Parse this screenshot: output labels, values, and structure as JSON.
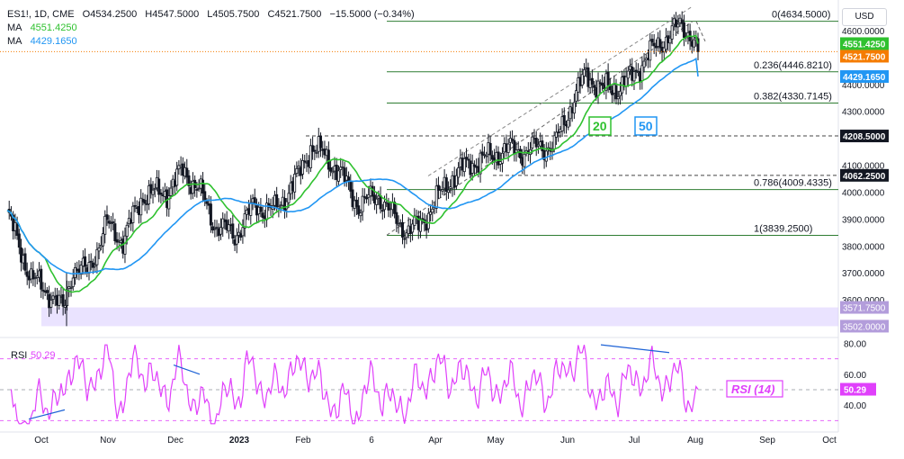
{
  "header": {
    "symbol": "ES1!, 1D, CME",
    "open": "O4534.2500",
    "high": "H4547.5000",
    "low": "L4505.7500",
    "close": "C4521.7500",
    "change": "−15.5000 (−0.34%)",
    "ma_label": "MA",
    "ma1_value": "4551.4250",
    "ma2_value": "4429.1650"
  },
  "currency_button": "USD",
  "colors": {
    "up": "#089981",
    "down": "#f23645",
    "candle": "#131722",
    "ma20": "#2fc12f",
    "ma50": "#2196f3",
    "rsi": "#e040fb",
    "price_tag": "#f57c00",
    "zone": "#d9ccff",
    "level": "#2e7d32"
  },
  "chart_data": [
    {
      "type": "candlestick",
      "series": [
        {
          "name": "ES1!",
          "values": "daily OHLC"
        },
        {
          "name": "MA",
          "period": 20,
          "last": 4551.425
        },
        {
          "name": "MA",
          "period": 50,
          "last": 4429.165
        }
      ],
      "ylim": [
        3470,
        4680
      ],
      "y_ticks": [
        3600,
        3700,
        3800,
        3900,
        4000,
        4100,
        4200,
        4300,
        4400,
        4500,
        4600
      ],
      "y_tick_labels": [
        "3600.0000",
        "3700.0000",
        "3800.0000",
        "3900.0000",
        "4000.0000",
        "4100.0000",
        "4200.0000",
        "4300.0000",
        "4400.0000",
        "4500.0000",
        "4600.0000"
      ],
      "x_tick_labels": [
        "Oct",
        "Nov",
        "Dec",
        "2023",
        "Feb",
        "6",
        "Apr",
        "May",
        "Jun",
        "Jul",
        "Aug",
        "Sep",
        "Oct"
      ],
      "fib_levels": [
        {
          "ratio": "0",
          "value": 4634.5,
          "label": "0(4634.5000)"
        },
        {
          "ratio": "0.236",
          "value": 4446.821,
          "label": "0.236(4446.8210)"
        },
        {
          "ratio": "0.382",
          "value": 4330.7145,
          "label": "0.382(4330.7145)"
        },
        {
          "ratio": "0.786",
          "value": 4009.4335,
          "label": "0.786(4009.4335)"
        },
        {
          "ratio": "1",
          "value": 3839.25,
          "label": "1(3839.2500)"
        }
      ],
      "horizontal_levels": [
        {
          "value": 4208.5,
          "label": "4208.5000"
        },
        {
          "value": 4062.25,
          "label": "4062.2500"
        }
      ],
      "support_zone": {
        "low": 3502.0,
        "high": 3571.75,
        "labels": [
          "3571.7500",
          "3502.0000"
        ]
      },
      "price_tags": [
        {
          "value": 4551.425,
          "label": "4551.4250",
          "series": "MA 20"
        },
        {
          "value": 4521.75,
          "label": "4521.7500",
          "series": "last price"
        },
        {
          "value": 4429.165,
          "label": "4429.1650",
          "series": "MA 50"
        }
      ],
      "annotations": [
        "20",
        "50"
      ]
    },
    {
      "type": "line",
      "name": "RSI",
      "value_label": "50.29",
      "annotation": "RSI (14)",
      "last": 50.29,
      "ylim": [
        25,
        82
      ],
      "levels": [
        70,
        50,
        30
      ],
      "y_ticks": [
        40,
        60,
        80
      ],
      "y_tick_labels": [
        "40.00",
        "60.00",
        "80.00"
      ]
    }
  ]
}
